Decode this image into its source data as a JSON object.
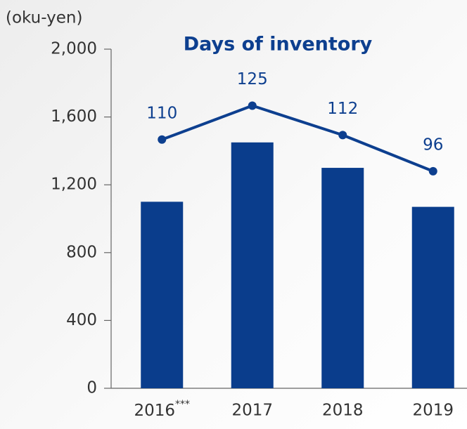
{
  "chart_data": {
    "type": "combo",
    "y_label": "(oku-yen)",
    "categories": [
      "2016***",
      "2017",
      "2018",
      "2019"
    ],
    "series": [
      {
        "type": "bar",
        "color": "#0a3d8c",
        "values": [
          1100,
          1450,
          1300,
          1070
        ]
      },
      {
        "type": "line",
        "name": "Days of inventory",
        "axis": "y2",
        "color": "#0d3f8f",
        "values": [
          110,
          125,
          112,
          96
        ]
      }
    ],
    "ylim": [
      0,
      2000
    ],
    "yticks": [
      0,
      400,
      800,
      {
        "value": 1200,
        "label": "1,200"
      },
      {
        "value": 1600,
        "label": "1,600"
      },
      {
        "value": 2000,
        "label": "2,000"
      }
    ],
    "y2lim": [
      0,
      150
    ]
  }
}
